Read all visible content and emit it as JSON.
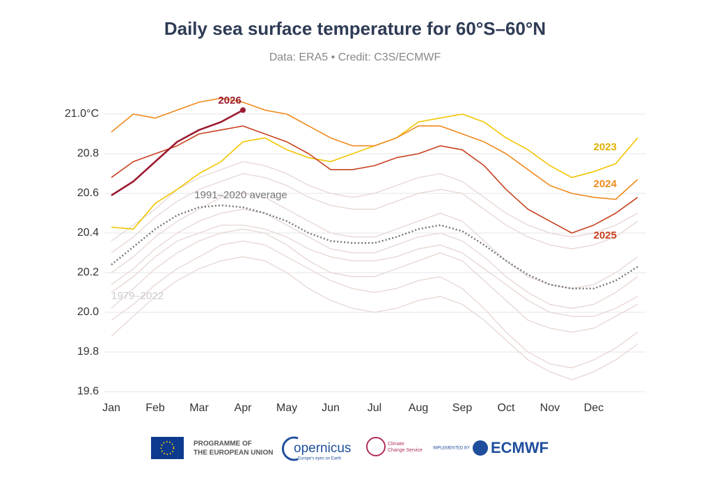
{
  "chart_data": {
    "type": "line",
    "title": "Daily sea surface temperature for 60°S–60°N",
    "subtitle": "Data: ERA5 • Credit: C3S/ECMWF",
    "categories": [
      "Jan",
      null,
      "Feb",
      null,
      "Mar",
      null,
      "Apr",
      null,
      "May",
      null,
      "Jun",
      null,
      "Jul",
      null,
      "Aug",
      null,
      "Sep",
      null,
      "Oct",
      null,
      "Nov",
      null,
      "Dec",
      null,
      null
    ],
    "ylim": [
      19.6,
      21.1
    ],
    "yticks": [
      {
        "value": 21.0,
        "label": "21.0°C"
      },
      20.8,
      20.6,
      20.4,
      20.2,
      {
        "value": 20.0,
        "label": "20.0"
      },
      19.8,
      19.6
    ],
    "grid": true,
    "background": {
      "name": "1979–2022",
      "color": "#e6d6d2",
      "lines": [
        [
          20.3,
          20.38,
          20.48,
          20.56,
          20.62,
          20.66,
          20.7,
          20.68,
          20.64,
          20.58,
          20.54,
          20.52,
          20.52,
          20.56,
          20.6,
          20.62,
          20.6,
          20.52,
          20.44,
          20.38,
          20.34,
          20.32,
          20.34,
          20.38,
          20.46
        ],
        [
          20.1,
          20.18,
          20.28,
          20.36,
          20.4,
          20.44,
          20.44,
          20.42,
          20.38,
          20.32,
          20.28,
          20.26,
          20.26,
          20.28,
          20.32,
          20.34,
          20.3,
          20.22,
          20.14,
          20.06,
          20.0,
          19.98,
          19.98,
          20.02,
          20.08
        ],
        [
          19.88,
          19.98,
          20.08,
          20.16,
          20.22,
          20.26,
          20.28,
          20.26,
          20.2,
          20.12,
          20.06,
          20.02,
          20.0,
          20.02,
          20.06,
          20.08,
          20.04,
          19.96,
          19.86,
          19.76,
          19.7,
          19.66,
          19.7,
          19.76,
          19.84
        ],
        [
          20.2,
          20.28,
          20.38,
          20.46,
          20.52,
          20.58,
          20.6,
          20.58,
          20.52,
          20.46,
          20.4,
          20.38,
          20.38,
          20.42,
          20.46,
          20.5,
          20.46,
          20.36,
          20.26,
          20.18,
          20.14,
          20.12,
          20.14,
          20.2,
          20.28
        ],
        [
          20.02,
          20.12,
          20.22,
          20.3,
          20.36,
          20.4,
          20.42,
          20.4,
          20.34,
          20.26,
          20.2,
          20.18,
          20.18,
          20.22,
          20.26,
          20.3,
          20.26,
          20.16,
          20.06,
          19.96,
          19.92,
          19.9,
          19.92,
          19.98,
          20.04
        ],
        [
          20.36,
          20.44,
          20.52,
          20.62,
          20.68,
          20.72,
          20.76,
          20.74,
          20.7,
          20.64,
          20.6,
          20.58,
          20.6,
          20.64,
          20.68,
          20.7,
          20.66,
          20.58,
          20.5,
          20.44,
          20.4,
          20.38,
          20.4,
          20.44,
          20.5
        ],
        [
          19.96,
          20.04,
          20.14,
          20.22,
          20.28,
          20.34,
          20.36,
          20.34,
          20.28,
          20.22,
          20.16,
          20.12,
          20.1,
          20.12,
          20.16,
          20.18,
          20.12,
          20.02,
          19.9,
          19.8,
          19.74,
          19.72,
          19.76,
          19.82,
          19.9
        ],
        [
          20.14,
          20.22,
          20.32,
          20.4,
          20.46,
          20.5,
          20.52,
          20.5,
          20.44,
          20.38,
          20.32,
          20.3,
          20.3,
          20.34,
          20.38,
          20.4,
          20.36,
          20.28,
          20.18,
          20.1,
          20.04,
          20.02,
          20.04,
          20.1,
          20.18
        ]
      ]
    },
    "series": [
      {
        "name": "1991–2020 average",
        "color": "#777777",
        "dashed": true,
        "values": [
          20.24,
          20.33,
          20.42,
          20.49,
          20.53,
          20.54,
          20.53,
          20.5,
          20.46,
          20.4,
          20.36,
          20.35,
          20.35,
          20.38,
          20.42,
          20.44,
          20.41,
          20.34,
          20.26,
          20.19,
          20.14,
          20.12,
          20.12,
          20.16,
          20.23
        ]
      },
      {
        "name": "2023",
        "color": "#f2c500",
        "values": [
          20.43,
          20.42,
          20.55,
          20.62,
          20.7,
          20.76,
          20.86,
          20.88,
          20.82,
          20.78,
          20.76,
          20.8,
          20.84,
          20.88,
          20.96,
          20.98,
          21.0,
          20.96,
          20.88,
          20.82,
          20.74,
          20.68,
          20.71,
          20.75,
          20.88
        ]
      },
      {
        "name": "2024",
        "color": "#ef8a1c",
        "values": [
          20.91,
          21.0,
          20.98,
          21.02,
          21.06,
          21.08,
          21.06,
          21.02,
          21.0,
          20.94,
          20.88,
          20.84,
          20.84,
          20.88,
          20.94,
          20.94,
          20.9,
          20.86,
          20.8,
          20.72,
          20.64,
          20.6,
          20.58,
          20.57,
          20.67
        ]
      },
      {
        "name": "2025",
        "color": "#c8401e",
        "values": [
          20.68,
          20.76,
          20.8,
          20.84,
          20.9,
          20.92,
          20.94,
          20.9,
          20.86,
          20.8,
          20.72,
          20.72,
          20.74,
          20.78,
          20.8,
          20.84,
          20.82,
          20.74,
          20.62,
          20.52,
          20.46,
          20.4,
          20.44,
          20.5,
          20.58
        ]
      },
      {
        "name": "2026",
        "color": "#9b1b30",
        "values": [
          20.59,
          20.66,
          20.76,
          20.86,
          20.92,
          20.96,
          21.02,
          null,
          null,
          null,
          null,
          null,
          null,
          null,
          null,
          null,
          null,
          null,
          null,
          null,
          null,
          null,
          null,
          null,
          null
        ]
      }
    ]
  },
  "footer": {
    "eu_line1": "PROGRAMME OF",
    "eu_line2": "THE EUROPEAN UNION",
    "copernicus": "opernicus",
    "copernicus_tagline": "Europe's eyes on Earth",
    "c3s_line1": "Climate",
    "c3s_line2": "Change Service",
    "implemented_by": "IMPLEMENTED BY",
    "ecmwf": "ECMWF"
  }
}
